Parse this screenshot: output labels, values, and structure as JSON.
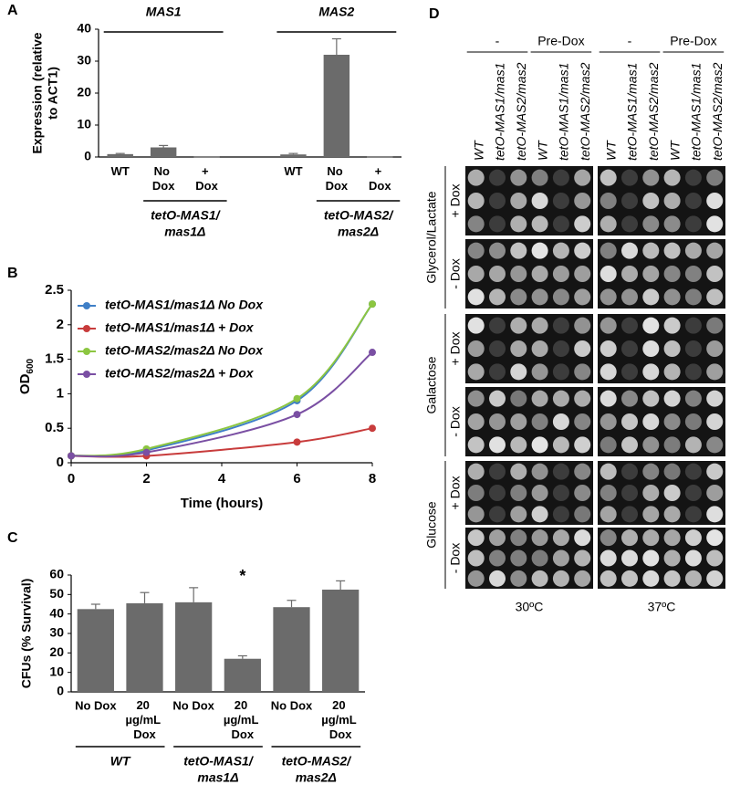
{
  "panel_labels": [
    "A",
    "B",
    "C",
    "D"
  ],
  "chart_data": [
    {
      "type": "bar",
      "y_label": [
        "Expression (relative",
        "to ACT1)"
      ],
      "categories": [
        "WT",
        "No Dox",
        "+ Dox",
        null,
        "WT",
        "No Dox",
        "+ Dox"
      ],
      "values": [
        0.9,
        3,
        0.1,
        null,
        0.8,
        32,
        0.1
      ],
      "errors": [
        0.2,
        0.6,
        null,
        null,
        0.3,
        5,
        null
      ],
      "color": "#6b6b6b",
      "ylim": [
        0,
        40
      ],
      "yticks": [
        0,
        10,
        20,
        30,
        40
      ],
      "group_labels_top": [
        "MAS1",
        "MAS2"
      ],
      "group_labels_bottom": [
        [
          "tetO-MAS1/",
          "mas1Δ"
        ],
        [
          "tetO-MAS2/",
          "mas2Δ"
        ]
      ]
    },
    {
      "type": "line",
      "x_label": "Time (hours)",
      "y_label": "OD",
      "y_label_subscript": "600",
      "x": [
        0,
        2,
        6,
        8
      ],
      "series": [
        {
          "name": "tetO-MAS1/mas1Δ No Dox",
          "color": "#3f7fc7",
          "values": [
            0.1,
            0.18,
            0.9,
            2.3
          ]
        },
        {
          "name": "tetO-MAS1/mas1Δ + Dox",
          "color": "#c83c3c",
          "values": [
            0.1,
            0.1,
            0.3,
            0.5
          ]
        },
        {
          "name": "tetO-MAS2/mas2Δ No Dox",
          "color": "#8cc641",
          "values": [
            0.1,
            0.2,
            0.93,
            2.3
          ]
        },
        {
          "name": "tetO-MAS2/mas2Δ + Dox",
          "color": "#7a4fa3",
          "values": [
            0.1,
            0.15,
            0.7,
            1.6
          ]
        }
      ],
      "xlim": [
        0,
        8
      ],
      "xticks": [
        0,
        2,
        4,
        6,
        8
      ],
      "ylim": [
        0,
        2.5
      ],
      "yticks": [
        0,
        0.5,
        1,
        1.5,
        2,
        2.5
      ],
      "legend": "upper left"
    },
    {
      "type": "bar",
      "y_label": "CFUs (% Survival)",
      "categories": [
        "No Dox",
        "20 µg/mL Dox",
        "No Dox",
        "20 µg/mL Dox",
        "No Dox",
        "20 µg/mL Dox"
      ],
      "values": [
        42.5,
        45.5,
        46,
        17,
        43.5,
        52.5
      ],
      "errors": [
        2.5,
        5.5,
        7.5,
        1.5,
        3.5,
        4.5
      ],
      "significance": [
        null,
        null,
        null,
        "*",
        null,
        null
      ],
      "color": "#6b6b6b",
      "ylim": [
        0,
        60
      ],
      "yticks": [
        0,
        10,
        20,
        30,
        40,
        50,
        60
      ],
      "group_labels_bottom": [
        [
          "WT"
        ],
        [
          "tetO-MAS1/",
          "mas1Δ"
        ],
        [
          "tetO-MAS2/",
          "mas2Δ"
        ]
      ]
    }
  ],
  "panel_d": {
    "column_groups": [
      "-",
      "Pre-Dox",
      "-",
      "Pre-Dox"
    ],
    "strains": [
      "WT",
      "tetO-MAS1/mas1",
      "tetO-MAS2/mas2",
      "WT",
      "tetO-MAS1/mas1",
      "tetO-MAS2/mas2",
      "WT",
      "tetO-MAS1/mas1",
      "tetO-MAS2/mas2",
      "WT",
      "tetO-MAS1/mas1",
      "tetO-MAS2/mas2"
    ],
    "carbon_sources": [
      "Glycerol/Lactate",
      "Galactose",
      "Glucose"
    ],
    "dox_labels": [
      "+ Dox",
      "- Dox",
      "+ Dox",
      "- Dox",
      "+ Dox",
      "- Dox"
    ],
    "temperatures": [
      "30ºC",
      "37ºC"
    ]
  }
}
